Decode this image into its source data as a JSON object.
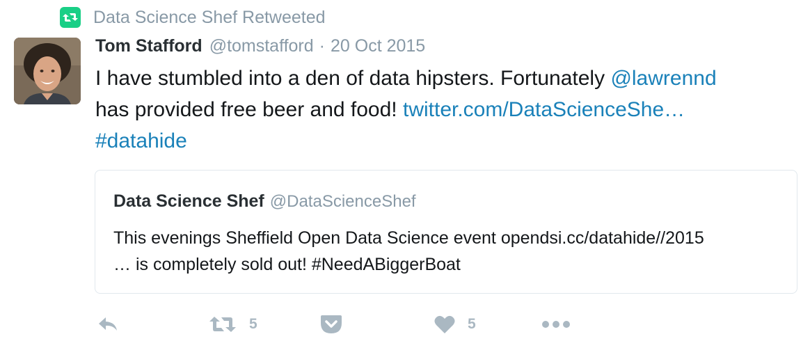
{
  "context": {
    "label": "Data Science Shef Retweeted",
    "icon": "retweet-icon",
    "color": "#19cf86"
  },
  "tweet": {
    "fullname": "Tom Stafford",
    "username": "@tomstafford",
    "separator": "·",
    "timestamp": "20 Oct 2015",
    "text_part1": "I have stumbled into a den of data hipsters. Fortunately ",
    "mention": "@lawrennd",
    "text_part2": "has provided free beer and food! ",
    "url": "twitter.com/DataScienceShe…",
    "hashtag": "#datahide",
    "link_color": "#1a81b9"
  },
  "quote": {
    "fullname": "Data Science Shef",
    "username": "@DataScienceShef",
    "text_line1": "This evenings Sheffield Open Data Science event opendsi.cc/datahide//2015",
    "text_line2": "… is completely sold out! #NeedABiggerBoat"
  },
  "actions": {
    "reply": {
      "icon": "reply-icon"
    },
    "retweet": {
      "icon": "retweet-icon",
      "count": "5"
    },
    "save": {
      "icon": "pocket-icon"
    },
    "like": {
      "icon": "heart-icon",
      "count": "5"
    },
    "more": {
      "icon": "more-icon"
    },
    "icon_color": "#aab8c2"
  }
}
